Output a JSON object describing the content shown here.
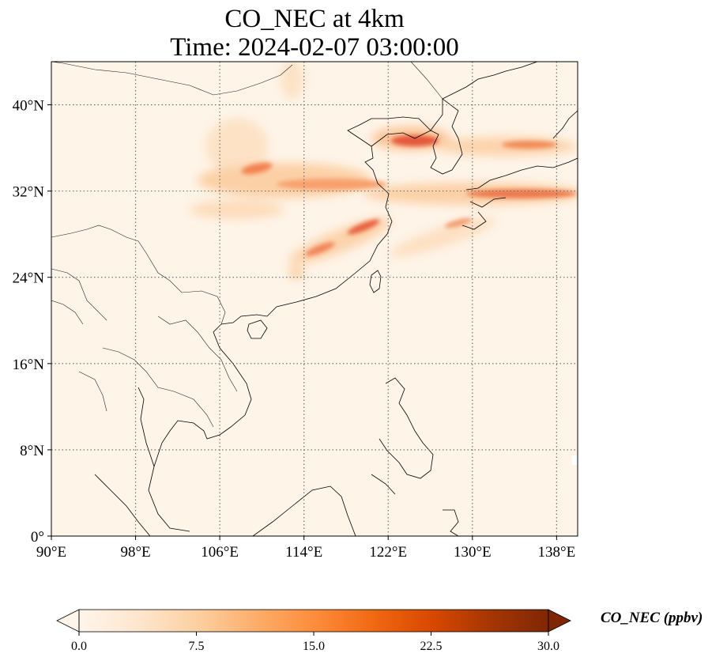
{
  "title": {
    "line1": "CO_NEC at 4km",
    "line2": "Time: 2024-02-07 03:00:00"
  },
  "map": {
    "lon_range": [
      90,
      140
    ],
    "lat_range": [
      0,
      44
    ],
    "lon_ticks": [
      {
        "value": 90,
        "label": "90°E"
      },
      {
        "value": 98,
        "label": "98°E"
      },
      {
        "value": 106,
        "label": "106°E"
      },
      {
        "value": 114,
        "label": "114°E"
      },
      {
        "value": 122,
        "label": "122°E"
      },
      {
        "value": 130,
        "label": "130°E"
      },
      {
        "value": 138,
        "label": "138°E"
      }
    ],
    "lat_ticks": [
      {
        "value": 0,
        "label": "0°"
      },
      {
        "value": 8,
        "label": "8°N"
      },
      {
        "value": 16,
        "label": "16°N"
      },
      {
        "value": 24,
        "label": "24°N"
      },
      {
        "value": 32,
        "label": "32°N"
      },
      {
        "value": 40,
        "label": "40°N"
      }
    ],
    "gridlines": true
  },
  "colorbar": {
    "label": "CO_NEC (ppbv)",
    "min": 0,
    "max": 30,
    "ticks": [
      {
        "value": 0,
        "label": "0.0"
      },
      {
        "value": 7.5,
        "label": "7.5"
      },
      {
        "value": 15,
        "label": "15.0"
      },
      {
        "value": 22.5,
        "label": "22.5"
      },
      {
        "value": 30,
        "label": "30.0"
      }
    ],
    "colors": [
      "#fff5eb",
      "#fee6ce",
      "#fdd0a2",
      "#fdae6b",
      "#fd8d3c",
      "#f16913",
      "#d94801",
      "#a63603",
      "#7f2704"
    ],
    "extend": "both"
  }
}
